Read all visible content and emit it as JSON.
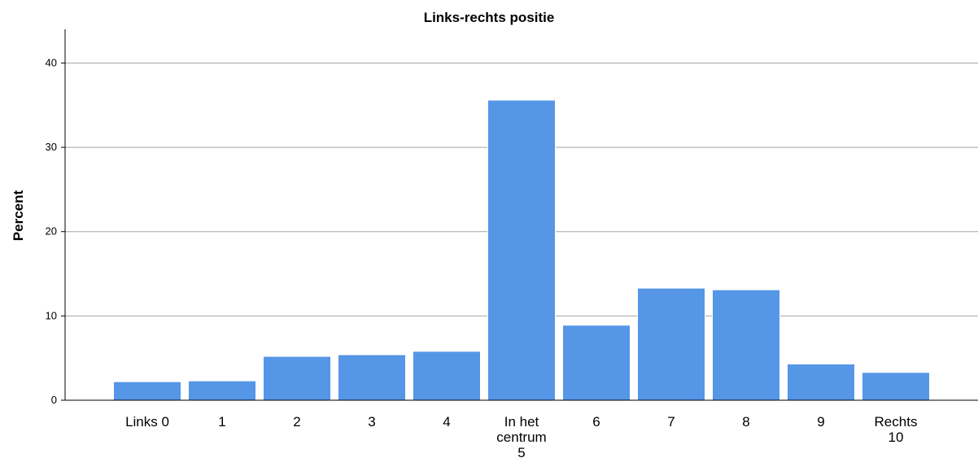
{
  "chart_data": {
    "type": "bar",
    "title": "Links-rechts positie",
    "xlabel": "",
    "ylabel": "Percent",
    "categories": [
      [
        "Links 0"
      ],
      [
        "1"
      ],
      [
        "2"
      ],
      [
        "3"
      ],
      [
        "4"
      ],
      [
        "In het",
        "centrum",
        "5"
      ],
      [
        "6"
      ],
      [
        "7"
      ],
      [
        "8"
      ],
      [
        "9"
      ],
      [
        "Rechts",
        "10"
      ]
    ],
    "values": [
      2.2,
      2.3,
      5.2,
      5.4,
      5.8,
      35.6,
      8.9,
      13.3,
      13.1,
      4.3,
      3.3
    ],
    "ylim": [
      0,
      44
    ],
    "yticks": [
      0,
      10,
      20,
      30,
      40
    ],
    "grid": true,
    "bar_color": "#5596e6",
    "grid_color": "#a6a6a6",
    "axis_color": "#000000"
  }
}
